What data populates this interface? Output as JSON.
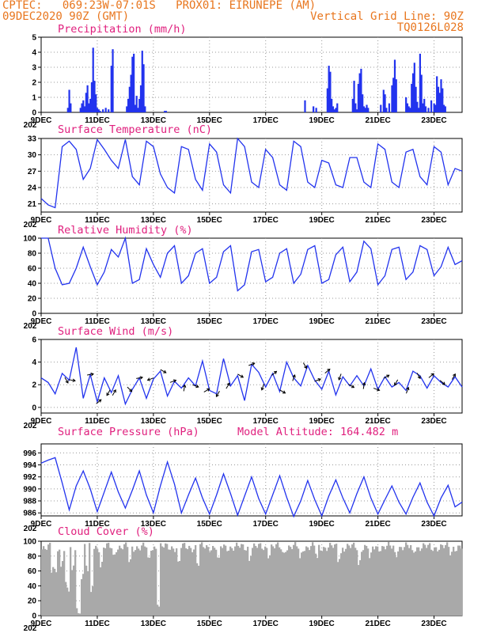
{
  "header": {
    "line1_left": "CPTEC:   069:23W-07:01S   PROX01: EIRUNEPE (AM)",
    "line2_left": "09DEC2020 90Z (GMT)",
    "line2_right": "Vertical Grid Line: 90Z",
    "line3_right": "TQ0126L028"
  },
  "colors": {
    "header": "#e8761e",
    "title": "#e0207e",
    "series": "#2233ee",
    "cloud": "#a9a9a9"
  },
  "x_axis": {
    "ticks": [
      "9DEC",
      "11DEC",
      "13DEC",
      "15DEC",
      "17DEC",
      "19DEC",
      "21DEC",
      "23DEC"
    ],
    "year_stub": "202"
  },
  "chart_data": [
    {
      "id": "precip",
      "type": "bar",
      "title": "Precipitation (mm/h)",
      "ylim": [
        0,
        5
      ],
      "yticks": [
        "0",
        "1",
        "2",
        "3",
        "4",
        "5"
      ],
      "x_days": [
        0.95,
        1.0,
        1.05,
        1.4,
        1.45,
        1.5,
        1.55,
        1.6,
        1.65,
        1.7,
        1.75,
        1.8,
        1.85,
        1.9,
        1.95,
        2.0,
        2.05,
        2.1,
        2.2,
        2.3,
        2.4,
        2.5,
        2.55,
        3.05,
        3.1,
        3.15,
        3.2,
        3.25,
        3.3,
        3.35,
        3.4,
        3.45,
        3.5,
        3.55,
        3.6,
        3.65,
        3.7,
        4.4,
        4.45,
        9.4,
        9.7,
        9.8,
        10.2,
        10.25,
        10.3,
        10.35,
        10.4,
        10.45,
        10.5,
        10.55,
        11.1,
        11.15,
        11.2,
        11.25,
        11.3,
        11.35,
        11.4,
        11.45,
        11.5,
        11.55,
        11.6,
        11.65,
        12.1,
        12.2,
        12.25,
        12.3,
        12.4,
        12.5,
        12.55,
        12.6,
        12.65,
        13.0,
        13.05,
        13.1,
        13.15,
        13.2,
        13.25,
        13.3,
        13.35,
        13.4,
        13.45,
        13.5,
        13.55,
        13.6,
        13.65,
        13.7,
        13.8,
        13.9,
        14.0,
        14.05,
        14.1,
        14.15,
        14.2,
        14.25,
        14.3,
        14.35,
        14.4
      ],
      "values": [
        0.3,
        1.5,
        0.6,
        0.3,
        0.6,
        0.8,
        0.4,
        1.3,
        1.8,
        0.6,
        0.9,
        2.0,
        4.3,
        2.1,
        1.2,
        0.3,
        0.2,
        0.1,
        0.2,
        0.3,
        0.2,
        3.1,
        4.2,
        0.4,
        0.9,
        1.7,
        2.5,
        3.7,
        3.9,
        0.5,
        1.1,
        0.3,
        0.9,
        1.8,
        4.1,
        3.2,
        0.4,
        0.1,
        0.1,
        0.8,
        0.4,
        0.3,
        1.6,
        3.1,
        2.7,
        0.9,
        0.4,
        0.2,
        0.3,
        0.6,
        0.9,
        2.1,
        0.6,
        0.2,
        1.9,
        2.6,
        2.9,
        1.2,
        0.4,
        0.3,
        0.5,
        0.3,
        0.5,
        1.5,
        1.2,
        0.3,
        0.6,
        1.8,
        2.3,
        3.5,
        2.2,
        1.0,
        0.6,
        0.4,
        0.3,
        1.9,
        2.6,
        3.3,
        1.7,
        0.7,
        0.3,
        3.9,
        2.5,
        0.6,
        0.9,
        0.4,
        0.3,
        0.8,
        0.6,
        0.5,
        2.4,
        1.7,
        1.3,
        2.2,
        1.6,
        0.5,
        0.4
      ]
    },
    {
      "id": "temp",
      "type": "line",
      "title": "Surface Temperature (nC)",
      "ylim": [
        19.5,
        33
      ],
      "yticks": [
        "21",
        "24",
        "27",
        "30",
        "33"
      ],
      "ytick_vals": [
        21,
        24,
        27,
        30,
        33
      ],
      "x_days": [
        0,
        0.25,
        0.5,
        0.75,
        1.0,
        1.25,
        1.5,
        1.75,
        2.0,
        2.25,
        2.5,
        2.75,
        3.0,
        3.25,
        3.5,
        3.75,
        4.0,
        4.25,
        4.5,
        4.75,
        5.0,
        5.25,
        5.5,
        5.75,
        6.0,
        6.25,
        6.5,
        6.75,
        7.0,
        7.25,
        7.5,
        7.75,
        8.0,
        8.25,
        8.5,
        8.75,
        9.0,
        9.25,
        9.5,
        9.75,
        10.0,
        10.25,
        10.5,
        10.75,
        11.0,
        11.25,
        11.5,
        11.75,
        12.0,
        12.25,
        12.5,
        12.75,
        13.0,
        13.25,
        13.5,
        13.75,
        14.0,
        14.25,
        14.5,
        14.75,
        15.0
      ],
      "values": [
        22.0,
        20.8,
        20.3,
        31.5,
        32.5,
        31.0,
        25.5,
        27.5,
        32.8,
        31.0,
        29.0,
        27.5,
        32.8,
        26.0,
        24.5,
        32.5,
        31.5,
        26.5,
        24.0,
        23.0,
        31.5,
        31.0,
        25.5,
        23.5,
        32.0,
        30.5,
        24.5,
        23.0,
        33.0,
        31.5,
        25.0,
        24.0,
        31.0,
        29.5,
        24.5,
        23.5,
        32.5,
        31.5,
        25.0,
        24.0,
        29.0,
        28.5,
        24.5,
        24.0,
        29.5,
        29.5,
        25.0,
        24.0,
        32.0,
        31.0,
        25.0,
        24.0,
        30.5,
        31.0,
        26.0,
        24.5,
        31.5,
        30.5,
        24.5,
        27.5,
        27.0
      ]
    },
    {
      "id": "rh",
      "type": "line",
      "title": "Relative Humidity (%)",
      "ylim": [
        0,
        100
      ],
      "yticks": [
        "0",
        "20",
        "40",
        "60",
        "80",
        "100"
      ],
      "ytick_vals": [
        0,
        20,
        40,
        60,
        80,
        100
      ],
      "x_days": [
        0,
        0.25,
        0.5,
        0.75,
        1.0,
        1.25,
        1.5,
        1.75,
        2.0,
        2.25,
        2.5,
        2.75,
        3.0,
        3.25,
        3.5,
        3.75,
        4.0,
        4.25,
        4.5,
        4.75,
        5.0,
        5.25,
        5.5,
        5.75,
        6.0,
        6.25,
        6.5,
        6.75,
        7.0,
        7.25,
        7.5,
        7.75,
        8.0,
        8.25,
        8.5,
        8.75,
        9.0,
        9.25,
        9.5,
        9.75,
        10.0,
        10.25,
        10.5,
        10.75,
        11.0,
        11.25,
        11.5,
        11.75,
        12.0,
        12.25,
        12.5,
        12.75,
        13.0,
        13.25,
        13.5,
        13.75,
        14.0,
        14.25,
        14.5,
        14.75,
        15.0
      ],
      "values": [
        100,
        100,
        60,
        38,
        40,
        60,
        88,
        62,
        38,
        55,
        85,
        75,
        100,
        40,
        45,
        86,
        65,
        48,
        80,
        90,
        40,
        50,
        80,
        86,
        40,
        48,
        82,
        90,
        30,
        38,
        82,
        85,
        42,
        48,
        80,
        86,
        40,
        52,
        85,
        90,
        40,
        45,
        78,
        88,
        42,
        55,
        96,
        86,
        38,
        50,
        85,
        88,
        45,
        55,
        90,
        85,
        50,
        62,
        88,
        65,
        70
      ]
    },
    {
      "id": "wind",
      "type": "line",
      "title": "Surface Wind (m/s)",
      "ylim": [
        -0.5,
        6
      ],
      "yticks": [
        "0",
        "2",
        "4",
        "6"
      ],
      "ytick_vals": [
        0,
        2,
        4,
        6
      ],
      "x_days": [
        0,
        0.25,
        0.5,
        0.75,
        1.0,
        1.25,
        1.5,
        1.75,
        2.0,
        2.25,
        2.5,
        2.75,
        3.0,
        3.25,
        3.5,
        3.75,
        4.0,
        4.25,
        4.5,
        4.75,
        5.0,
        5.25,
        5.5,
        5.75,
        6.0,
        6.25,
        6.5,
        6.75,
        7.0,
        7.25,
        7.5,
        7.75,
        8.0,
        8.25,
        8.5,
        8.75,
        9.0,
        9.25,
        9.5,
        9.75,
        10.0,
        10.25,
        10.5,
        10.75,
        11.0,
        11.25,
        11.5,
        11.75,
        12.0,
        12.25,
        12.5,
        12.75,
        13.0,
        13.25,
        13.5,
        13.75,
        14.0,
        14.25,
        14.5,
        14.75,
        15.0
      ],
      "values": [
        2.6,
        2.2,
        1.2,
        3.0,
        2.4,
        5.3,
        0.8,
        2.9,
        0.5,
        2.6,
        1.3,
        2.8,
        0.3,
        1.6,
        2.6,
        0.8,
        2.5,
        3.2,
        1.0,
        2.3,
        1.7,
        2.6,
        1.9,
        4.1,
        1.5,
        1.2,
        4.3,
        1.9,
        2.8,
        0.6,
        3.8,
        3.1,
        1.8,
        3.0,
        1.4,
        4.0,
        2.6,
        1.9,
        3.7,
        2.4,
        1.6,
        3.2,
        1.1,
        2.7,
        1.9,
        2.8,
        1.9,
        3.4,
        1.6,
        2.7,
        1.8,
        2.2,
        1.5,
        3.2,
        2.8,
        1.7,
        2.8,
        2.2,
        1.8,
        2.7,
        1.8
      ],
      "arrow_days": [
        0.9,
        1.1,
        1.75,
        2.05,
        2.4,
        2.6,
        3.15,
        3.5,
        3.9,
        4.35,
        4.7,
        5.1,
        5.5,
        5.9,
        6.3,
        6.65,
        7.1,
        7.5,
        7.9,
        8.3,
        8.6,
        9.0,
        9.4,
        9.85,
        10.2,
        10.65,
        11.05,
        11.5,
        11.95,
        12.3,
        12.65,
        13.05,
        13.45,
        13.9,
        14.3,
        14.7
      ],
      "arrow_dirs": [
        300,
        350,
        10,
        40,
        240,
        60,
        315,
        10,
        200,
        330,
        20,
        80,
        340,
        30,
        240,
        60,
        330,
        20,
        250,
        40,
        330,
        70,
        300,
        20,
        40,
        250,
        330,
        80,
        340,
        30,
        240,
        70,
        300,
        40,
        320,
        60
      ]
    },
    {
      "id": "pres",
      "type": "line",
      "title": "Surface Pressure (hPa)",
      "annotation": "Model Altitude: 164.482 m",
      "ylim": [
        985.5,
        997.5
      ],
      "yticks": [
        "986",
        "988",
        "990",
        "992",
        "994",
        "996"
      ],
      "ytick_vals": [
        986,
        988,
        990,
        992,
        994,
        996
      ],
      "x_days": [
        0,
        0.25,
        0.5,
        0.75,
        1.0,
        1.25,
        1.5,
        1.75,
        2.0,
        2.25,
        2.5,
        2.75,
        3.0,
        3.25,
        3.5,
        3.75,
        4.0,
        4.25,
        4.5,
        4.75,
        5.0,
        5.25,
        5.5,
        5.75,
        6.0,
        6.25,
        6.5,
        6.75,
        7.0,
        7.25,
        7.5,
        7.75,
        8.0,
        8.25,
        8.5,
        8.75,
        9.0,
        9.25,
        9.5,
        9.75,
        10.0,
        10.25,
        10.5,
        10.75,
        11.0,
        11.25,
        11.5,
        11.75,
        12.0,
        12.25,
        12.5,
        12.75,
        13.0,
        13.25,
        13.5,
        13.75,
        14.0,
        14.25,
        14.5,
        14.75,
        15.0
      ],
      "values": [
        994.3,
        994.8,
        995.2,
        991.0,
        986.5,
        990.5,
        993.0,
        990.0,
        986.2,
        989.5,
        992.8,
        989.5,
        986.8,
        989.8,
        993.0,
        989.0,
        986.0,
        990.5,
        994.5,
        990.8,
        986.0,
        989.0,
        991.8,
        988.5,
        985.8,
        989.0,
        992.5,
        989.2,
        985.6,
        988.8,
        992.0,
        988.4,
        985.8,
        989.0,
        992.2,
        988.6,
        985.4,
        988.0,
        991.4,
        988.2,
        985.5,
        988.8,
        991.5,
        988.5,
        986.0,
        989.2,
        992.0,
        988.5,
        985.8,
        988.2,
        990.5,
        987.8,
        985.8,
        988.6,
        991.0,
        987.8,
        985.5,
        988.5,
        990.6,
        987.0,
        987.8
      ]
    },
    {
      "id": "cloud",
      "type": "bar",
      "title": "Cloud Cover (%)",
      "ylim": [
        0,
        100
      ],
      "yticks": [
        "0",
        "20",
        "40",
        "60",
        "80",
        "100"
      ],
      "ytick_vals": [
        0,
        20,
        40,
        60,
        80,
        100
      ],
      "baseline": 92,
      "dip_days": [
        0.35,
        0.5,
        0.7,
        0.9,
        1.1,
        1.3,
        1.45,
        1.6,
        1.8,
        2.1,
        2.55,
        3.15,
        3.8,
        4.15,
        4.9,
        5.55,
        6.3,
        7.4,
        8.1,
        8.6,
        9.2,
        9.8,
        10.6,
        11.3,
        11.7,
        12.6,
        13.2,
        13.9,
        14.6
      ],
      "dip_values": [
        60,
        55,
        70,
        40,
        60,
        10,
        50,
        65,
        35,
        70,
        75,
        80,
        85,
        20,
        80,
        75,
        85,
        80,
        85,
        78,
        80,
        85,
        80,
        75,
        80,
        85,
        80,
        82,
        78
      ]
    }
  ]
}
